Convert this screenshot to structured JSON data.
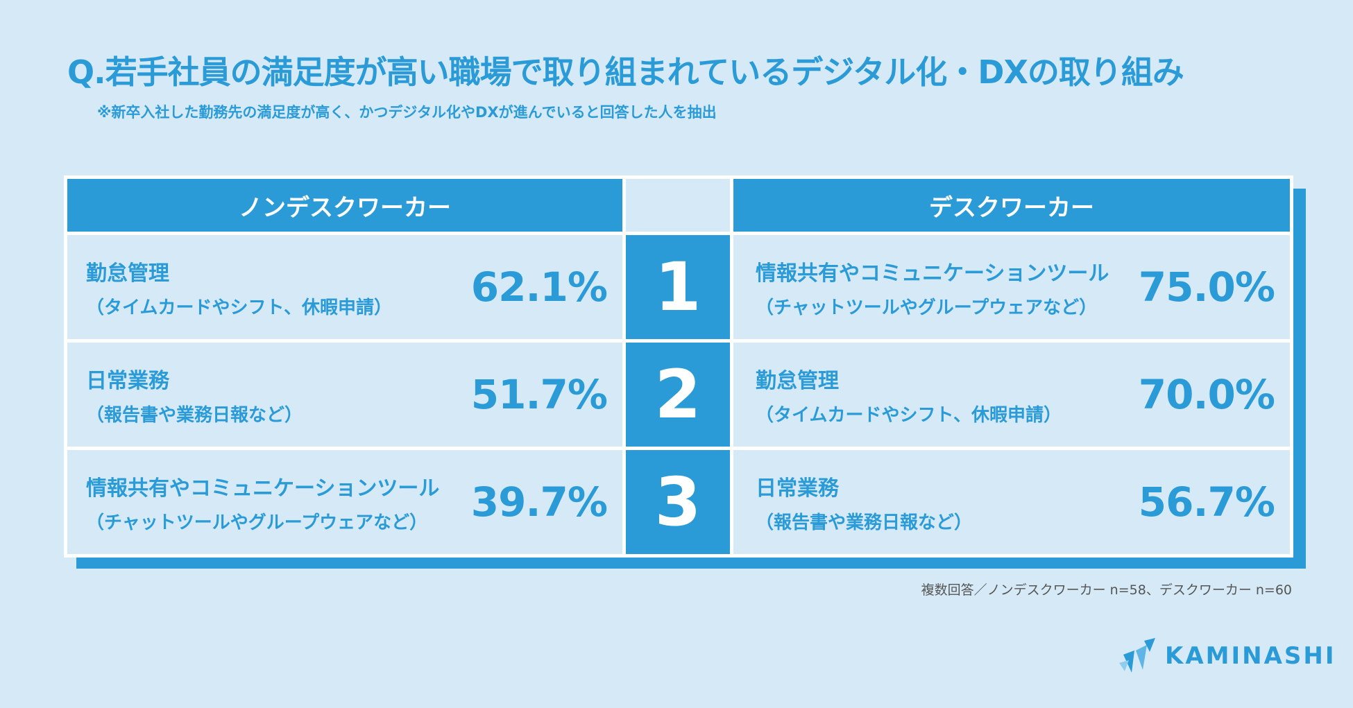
{
  "title": "Q.若手社員の満足度が高い職場で取り組まれているデジタル化・DXの取り組み",
  "subtitle": "※新卒入社した勤務先の満足度が高く、かつデジタル化やDXが進んでいると回答した人を抽出",
  "headers": {
    "left": "ノンデスクワーカー",
    "right": "デスクワーカー"
  },
  "rows": [
    {
      "rank": "1",
      "left": {
        "label": "勤怠管理",
        "sub": "（タイムカードやシフト、休暇申請）",
        "pct": "62.1%"
      },
      "right": {
        "label": "情報共有やコミュニケーションツール",
        "sub": "（チャットツールやグループウェアなど）",
        "pct": "75.0%"
      }
    },
    {
      "rank": "2",
      "left": {
        "label": "日常業務",
        "sub": "（報告書や業務日報など）",
        "pct": "51.7%"
      },
      "right": {
        "label": "勤怠管理",
        "sub": "（タイムカードやシフト、休暇申請）",
        "pct": "70.0%"
      }
    },
    {
      "rank": "3",
      "left": {
        "label": "情報共有やコミュニケーションツール",
        "sub": "（チャットツールやグループウェアなど）",
        "pct": "39.7%"
      },
      "right": {
        "label": "日常業務",
        "sub": "（報告書や業務日報など）",
        "pct": "56.7%"
      }
    }
  ],
  "footnote": "複数回答／ノンデスクワーカー n=58、デスクワーカー n=60",
  "logo": {
    "text": "KAMINASHI",
    "icon": "kaminashi-logo-icon"
  },
  "colors": {
    "accent": "#2b9bd8",
    "background": "#d5eaf6",
    "white": "#ffffff"
  }
}
